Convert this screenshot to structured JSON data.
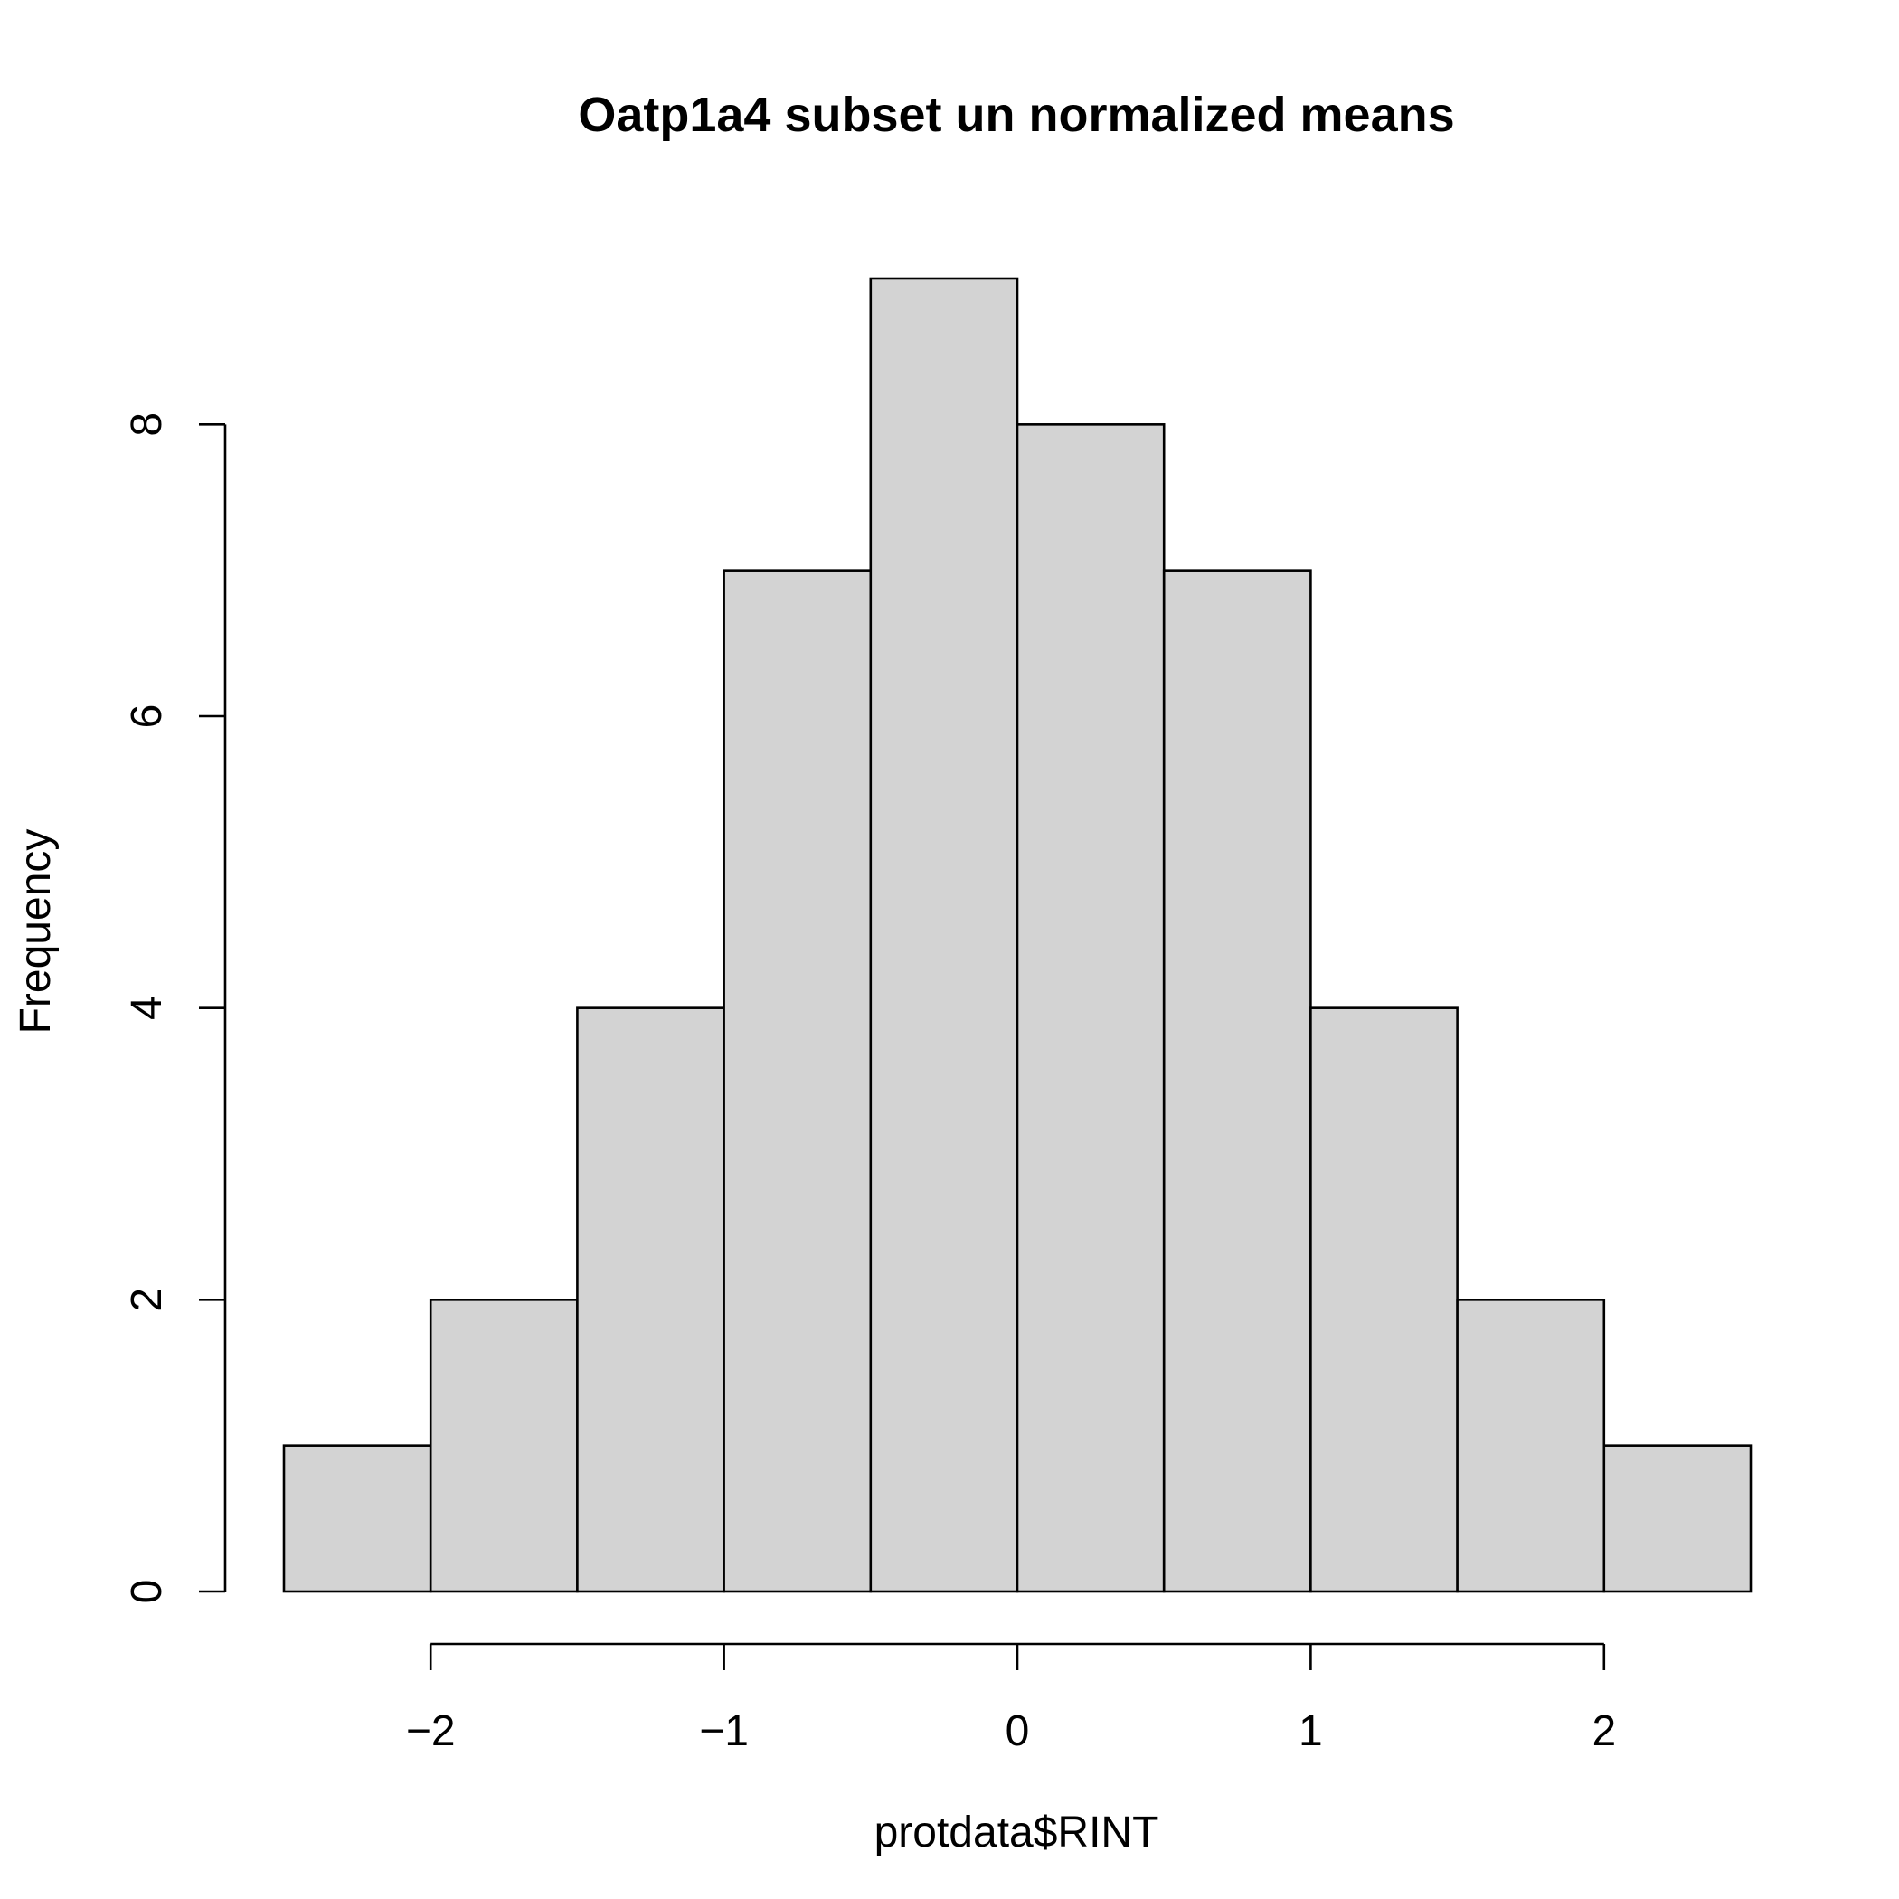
{
  "chart_data": {
    "type": "bar",
    "title": "Oatp1a4 subset un normalized means",
    "xlabel": "protdata$RINT",
    "ylabel": "Frequency",
    "bins": [
      {
        "start": -2.5,
        "end": -2.0,
        "count": 1
      },
      {
        "start": -2.0,
        "end": -1.5,
        "count": 2
      },
      {
        "start": -1.5,
        "end": -1.0,
        "count": 4
      },
      {
        "start": -1.0,
        "end": -0.5,
        "count": 7
      },
      {
        "start": -0.5,
        "end": 0.0,
        "count": 9
      },
      {
        "start": 0.0,
        "end": 0.5,
        "count": 8
      },
      {
        "start": 0.5,
        "end": 1.0,
        "count": 7
      },
      {
        "start": 1.0,
        "end": 1.5,
        "count": 4
      },
      {
        "start": 1.5,
        "end": 2.0,
        "count": 2
      },
      {
        "start": 2.0,
        "end": 2.5,
        "count": 1
      }
    ],
    "xticks": [
      -2,
      -1,
      0,
      1,
      2
    ],
    "xtick_labels": [
      "−2",
      "−1",
      "0",
      "1",
      "2"
    ],
    "yticks": [
      0,
      2,
      4,
      6,
      8
    ],
    "ytick_labels": [
      "0",
      "2",
      "4",
      "6",
      "8"
    ],
    "xlim": [
      -2.5,
      2.5
    ],
    "ylim": [
      0,
      9
    ],
    "grid": false,
    "colors": {
      "bar_fill": "#d3d3d3",
      "bar_stroke": "#000000"
    }
  }
}
